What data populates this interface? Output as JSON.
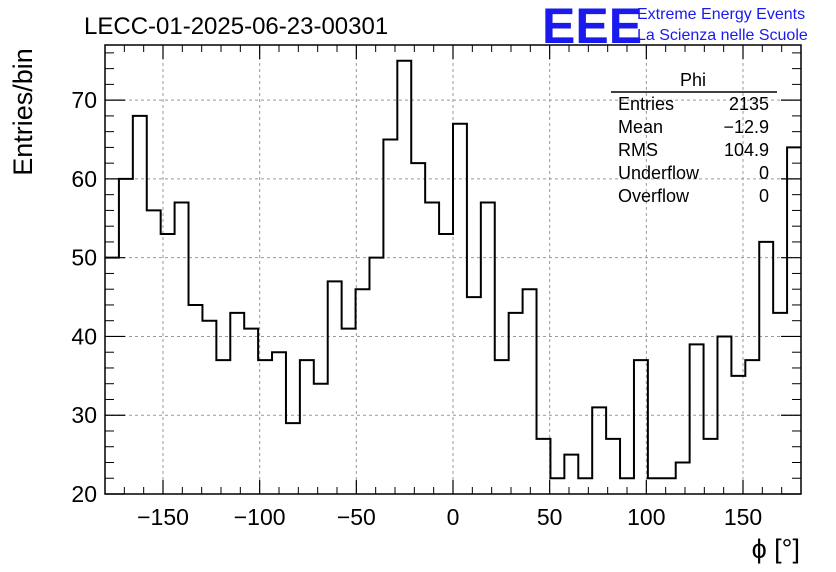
{
  "chart_data": {
    "type": "bar",
    "title": "LECC-01-2025-06-23-00301",
    "xlabel": "ϕ [°]",
    "ylabel": "Entries/bin",
    "xlim": [
      -180,
      180
    ],
    "ylim": [
      20,
      77
    ],
    "xticks": [
      -150,
      -100,
      -50,
      0,
      50,
      100,
      150
    ],
    "yticks": [
      20,
      30,
      40,
      50,
      60,
      70
    ],
    "grid": true,
    "bin_width": 7.2,
    "bin_edges_start": -180,
    "values": [
      50,
      60,
      68,
      56,
      53,
      57,
      44,
      42,
      37,
      43,
      41,
      37,
      38,
      29,
      37,
      34,
      47,
      41,
      46,
      50,
      65,
      75,
      62,
      57,
      53,
      67,
      45,
      57,
      37,
      43,
      46,
      27,
      22,
      25,
      22,
      31,
      27,
      22,
      37,
      22,
      22,
      24,
      39,
      27,
      40,
      35,
      37,
      52,
      43,
      64
    ],
    "stats_box": {
      "title": "Phi",
      "rows": [
        {
          "label": "Entries",
          "value": "2135"
        },
        {
          "label": "Mean",
          "value": "−12.9"
        },
        {
          "label": "RMS",
          "value": "104.9"
        },
        {
          "label": "Underflow",
          "value": "0"
        },
        {
          "label": "Overflow",
          "value": "0"
        }
      ]
    }
  },
  "logo": {
    "mark": "EEE",
    "line1": "Extreme Energy Events",
    "line2": "La Scienza nelle Scuole",
    "color": "#1a1aee"
  },
  "colors": {
    "histogram": "#000000",
    "grid": "#999999"
  }
}
